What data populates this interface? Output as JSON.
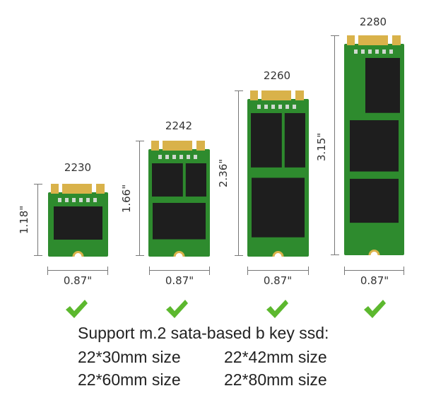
{
  "colors": {
    "pcb": "#2e8b2e",
    "gold": "#d9b24a",
    "chip": "#1e1e1e",
    "check": "#5cb82e"
  },
  "modules": [
    {
      "model": "2230",
      "height_label": "1.18\"",
      "width_label": "0.87\""
    },
    {
      "model": "2242",
      "height_label": "1.66\"",
      "width_label": "0.87\""
    },
    {
      "model": "2260",
      "height_label": "2.36\"",
      "width_label": "0.87\""
    },
    {
      "model": "2280",
      "height_label": "3.15\"",
      "width_label": "0.87\""
    }
  ],
  "caption": {
    "headline": "Support m.2 sata-based b key ssd:",
    "sizes": [
      "22*30mm size",
      "22*42mm size",
      "22*60mm size",
      "22*80mm size"
    ]
  }
}
